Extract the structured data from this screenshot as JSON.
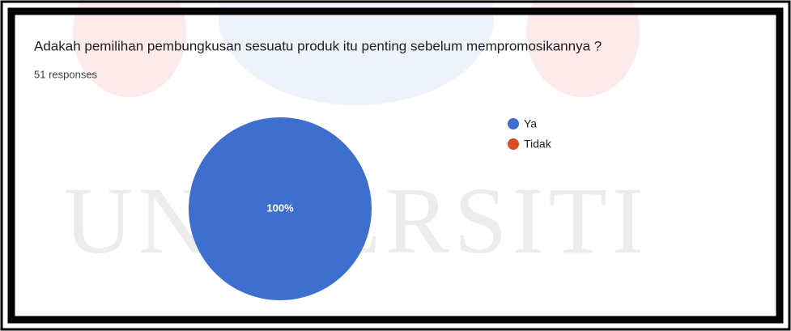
{
  "chart_data": {
    "type": "pie",
    "title": "Adakah pemilihan pembungkusan sesuatu produk itu penting sebelum mempromosikannya ?",
    "subtitle": "51 responses",
    "watermark": "UNIVERSITI",
    "categories": [
      "Ya",
      "Tidak"
    ],
    "values": [
      100,
      0
    ],
    "value_labels": [
      "100%",
      null
    ],
    "colors": [
      "#3e6fcf",
      "#dc4a26"
    ],
    "legend": "right"
  }
}
